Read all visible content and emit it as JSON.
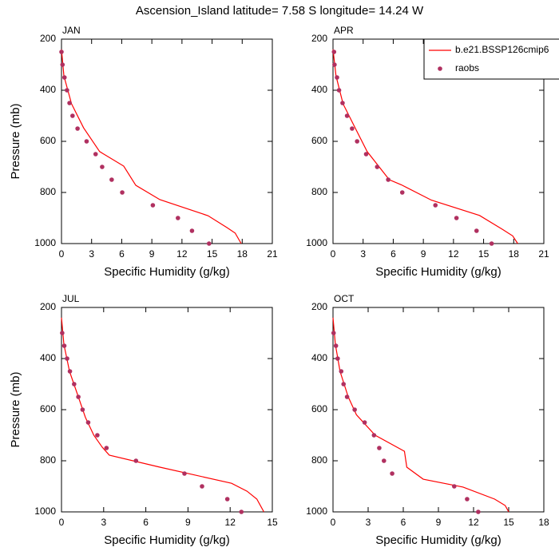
{
  "title": "Ascension_Island  latitude= 7.58 S longitude= 14.24 W",
  "chart_data": [
    {
      "type": "line",
      "title": "JAN",
      "xlabel": "Specific Humidity (g/kg)",
      "ylabel": "Pressure (mb)",
      "xlim": [
        0,
        21
      ],
      "xticks": [
        0,
        3,
        6,
        9,
        12,
        15,
        18,
        21
      ],
      "ylim": [
        1000,
        200
      ],
      "yticks": [
        200,
        400,
        600,
        800,
        1000
      ],
      "series": [
        {
          "name": "b.e21.BSSP126cmip6",
          "color": "#ff0000",
          "mode": "line",
          "x": [
            0,
            0.24,
            1.0,
            2.2,
            3.8,
            6.2,
            7.4,
            9.8,
            14.6,
            16.5,
            17.3,
            17.9
          ],
          "values": [
            240,
            344,
            453,
            547,
            640,
            697,
            772,
            828,
            891,
            938,
            959,
            1000
          ]
        },
        {
          "name": "raobs",
          "color": "#b03060",
          "mode": "markers",
          "x": [
            0.0,
            0.1,
            0.3,
            0.55,
            0.8,
            1.1,
            1.6,
            2.5,
            3.4,
            4.05,
            5.0,
            6.05,
            9.1,
            11.6,
            13.0,
            14.7
          ],
          "values": [
            250,
            300,
            350,
            400,
            450,
            500,
            550,
            600,
            650,
            700,
            750,
            800,
            850,
            900,
            950,
            1000
          ]
        }
      ]
    },
    {
      "type": "line",
      "title": "APR",
      "xlabel": "Specific Humidity (g/kg)",
      "xlim": [
        0,
        21
      ],
      "xticks": [
        0,
        3,
        6,
        9,
        12,
        15,
        18,
        21
      ],
      "ylim": [
        1000,
        200
      ],
      "yticks": [
        200,
        400,
        600,
        800,
        1000
      ],
      "legend": "top-right",
      "series": [
        {
          "name": "b.e21.BSSP126cmip6",
          "color": "#ff0000",
          "mode": "line",
          "x": [
            0,
            0.3,
            1.0,
            2.2,
            3.4,
            5.6,
            6.8,
            9.8,
            14.6,
            16.9,
            17.9,
            18.4
          ],
          "values": [
            240,
            344,
            453,
            547,
            640,
            750,
            770,
            830,
            890,
            945,
            970,
            1000
          ]
        },
        {
          "name": "raobs",
          "color": "#b03060",
          "mode": "markers",
          "x": [
            0.1,
            0.15,
            0.4,
            0.6,
            0.95,
            1.4,
            1.9,
            2.4,
            3.3,
            4.4,
            5.5,
            6.9,
            10.2,
            12.3,
            14.3,
            15.8
          ],
          "values": [
            250,
            300,
            350,
            400,
            450,
            500,
            550,
            600,
            650,
            700,
            750,
            800,
            850,
            900,
            950,
            1000
          ]
        }
      ]
    },
    {
      "type": "line",
      "title": "JUL",
      "xlabel": "Specific Humidity (g/kg)",
      "ylabel": "Pressure (mb)",
      "xlim": [
        0,
        15
      ],
      "xticks": [
        0,
        3,
        6,
        9,
        12,
        15
      ],
      "ylim": [
        1000,
        200
      ],
      "yticks": [
        200,
        400,
        600,
        800,
        1000
      ],
      "series": [
        {
          "name": "b.e21.BSSP126cmip6",
          "color": "#ff0000",
          "mode": "line",
          "x": [
            0,
            0.17,
            0.57,
            1.2,
            1.7,
            2.3,
            2.9,
            3.4,
            7.0,
            12.1,
            13.2,
            13.9,
            14.4
          ],
          "values": [
            240,
            344,
            450,
            550,
            630,
            700,
            747,
            778,
            825,
            888,
            919,
            950,
            1000
          ]
        },
        {
          "name": "raobs",
          "color": "#b03060",
          "mode": "markers",
          "x": [
            0.05,
            0.2,
            0.4,
            0.6,
            0.9,
            1.2,
            1.5,
            1.9,
            2.55,
            3.2,
            5.3,
            8.75,
            10.0,
            11.8,
            12.8
          ],
          "values": [
            300,
            350,
            400,
            450,
            500,
            550,
            600,
            650,
            700,
            750,
            800,
            850,
            900,
            950,
            1000
          ]
        }
      ]
    },
    {
      "type": "line",
      "title": "OCT",
      "xlabel": "Specific Humidity (g/kg)",
      "xlim": [
        0,
        18
      ],
      "xticks": [
        0,
        3,
        6,
        9,
        12,
        15,
        18
      ],
      "ylim": [
        1000,
        200
      ],
      "yticks": [
        200,
        400,
        600,
        800,
        1000
      ],
      "series": [
        {
          "name": "b.e21.BSSP126cmip6",
          "color": "#ff0000",
          "mode": "line",
          "x": [
            0,
            0.2,
            0.6,
            1.3,
            2.0,
            3.6,
            6.1,
            6.3,
            7.7,
            11.1,
            13.8,
            14.7,
            15.0
          ],
          "values": [
            240,
            344,
            450,
            550,
            620,
            700,
            763,
            825,
            872,
            903,
            950,
            975,
            1000
          ]
        },
        {
          "name": "raobs",
          "color": "#b03060",
          "mode": "markers",
          "x": [
            0.05,
            0.25,
            0.4,
            0.7,
            0.9,
            1.2,
            1.85,
            2.7,
            3.5,
            3.95,
            4.35,
            5.05,
            10.35,
            11.45,
            12.4
          ],
          "values": [
            300,
            350,
            400,
            450,
            500,
            550,
            600,
            650,
            700,
            750,
            800,
            850,
            900,
            950,
            1000
          ]
        }
      ]
    }
  ]
}
